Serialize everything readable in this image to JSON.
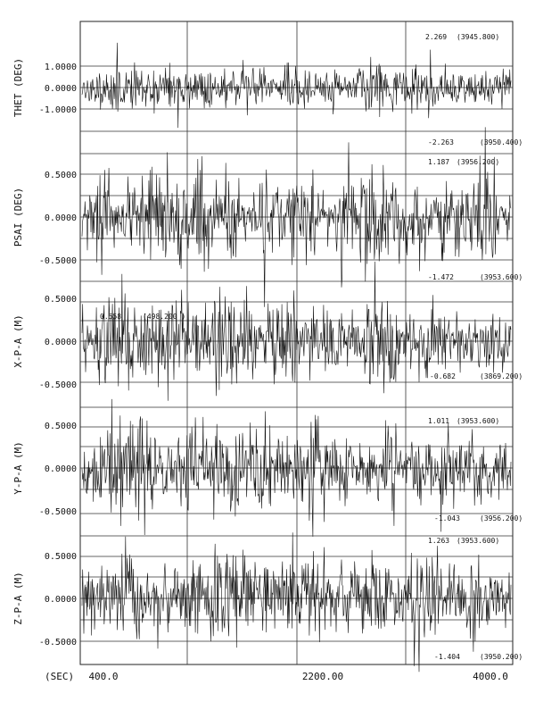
{
  "chart_data": {
    "type": "line",
    "x_axis": {
      "label": "(SEC)",
      "ticks": [
        "400.0",
        "2200.00",
        "4000.0"
      ],
      "range": [
        400.0,
        4000.0
      ]
    },
    "grid": true,
    "panels": [
      {
        "id": "thet",
        "ylabel": "THET (DEG)",
        "yticks": [
          "1.0000",
          "0.0000",
          "-1.0000"
        ],
        "ylim": [
          -1.75,
          1.75
        ],
        "amplitude": 0.48,
        "seed": 11,
        "max": {
          "value": "2.269",
          "time": "(3945.800)"
        },
        "min": {
          "value": "-2.263",
          "time": "(3950.400)"
        }
      },
      {
        "id": "psai",
        "ylabel": "PSAI (DEG)",
        "yticks": [
          "0.5000",
          "0.0000",
          "-0.5000"
        ],
        "ylim": [
          -1.0,
          1.0
        ],
        "amplitude": 0.45,
        "seed": 23,
        "max": {
          "value": "1.187",
          "time": "(3956.200)"
        },
        "min": {
          "value": "-1.472",
          "time": "(3953.600)"
        }
      },
      {
        "id": "xpa",
        "ylabel": "X-P-A (M)",
        "yticks": [
          "0.5000",
          "0.0000",
          "-0.5000"
        ],
        "ylim": [
          -1.0,
          1.0
        ],
        "amplitude": 0.24,
        "seed": 37,
        "max": {
          "value": "0.558",
          "time": "(498.200 )"
        },
        "min": {
          "value": "-0.682",
          "time": "(3869.200)"
        }
      },
      {
        "id": "ypa",
        "ylabel": "Y-P-A (M)",
        "yticks": [
          "0.5000",
          "0.0000",
          "-0.5000"
        ],
        "ylim": [
          -1.25,
          1.25
        ],
        "amplitude": 0.34,
        "seed": 51,
        "max": {
          "value": "1.011",
          "time": "(3953.600)"
        },
        "min": {
          "value": "-1.043",
          "time": "(3956.200)"
        }
      },
      {
        "id": "zpa",
        "ylabel": "Z-P-A (M)",
        "yticks": [
          "0.5000",
          "0.0000",
          "-0.5000"
        ],
        "ylim": [
          -1.25,
          1.25
        ],
        "amplitude": 0.34,
        "seed": 67,
        "max": {
          "value": "1.263",
          "time": "(3953.600)"
        },
        "min": {
          "value": "-1.404",
          "time": "(3950.200)"
        }
      }
    ]
  }
}
